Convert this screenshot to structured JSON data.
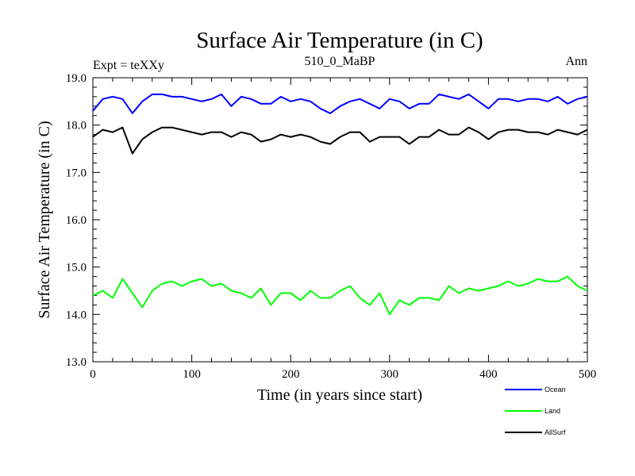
{
  "chart_data": {
    "type": "line",
    "title": "Surface Air Temperature (in C)",
    "subtitle_left": "Expt = teXXy",
    "subtitle_center": "510_0_MaBP",
    "subtitle_right": "Ann",
    "xlabel": "Time (in years since start)",
    "ylabel": "Surface Air Temperature (in C)",
    "xlim": [
      0,
      500
    ],
    "ylim": [
      13.0,
      19.0
    ],
    "x_ticks": [
      0,
      100,
      200,
      300,
      400,
      500
    ],
    "x_tick_labels": [
      "0",
      "100",
      "200",
      "300",
      "400",
      "500"
    ],
    "y_ticks": [
      13.0,
      14.0,
      15.0,
      16.0,
      17.0,
      18.0,
      19.0
    ],
    "y_tick_labels": [
      "13.0",
      "14.0",
      "15.0",
      "16.0",
      "17.0",
      "18.0",
      "19.0"
    ],
    "x": [
      0,
      10,
      20,
      30,
      40,
      50,
      60,
      70,
      80,
      90,
      100,
      110,
      120,
      130,
      140,
      150,
      160,
      170,
      180,
      190,
      200,
      210,
      220,
      230,
      240,
      250,
      260,
      270,
      280,
      290,
      300,
      310,
      320,
      330,
      340,
      350,
      360,
      370,
      380,
      390,
      400,
      410,
      420,
      430,
      440,
      450,
      460,
      470,
      480,
      490,
      500
    ],
    "series": [
      {
        "name": "Ocean",
        "color": "#0000ff",
        "values": [
          18.3,
          18.55,
          18.6,
          18.55,
          18.25,
          18.5,
          18.65,
          18.65,
          18.6,
          18.6,
          18.55,
          18.5,
          18.55,
          18.65,
          18.4,
          18.6,
          18.55,
          18.45,
          18.45,
          18.6,
          18.5,
          18.55,
          18.5,
          18.35,
          18.25,
          18.4,
          18.5,
          18.55,
          18.45,
          18.35,
          18.55,
          18.5,
          18.35,
          18.45,
          18.45,
          18.65,
          18.6,
          18.55,
          18.65,
          18.5,
          18.35,
          18.55,
          18.55,
          18.5,
          18.55,
          18.55,
          18.5,
          18.6,
          18.45,
          18.55,
          18.6
        ]
      },
      {
        "name": "Land",
        "color": "#00ff00",
        "values": [
          14.4,
          14.5,
          14.35,
          14.75,
          14.45,
          14.15,
          14.5,
          14.65,
          14.7,
          14.6,
          14.7,
          14.75,
          14.6,
          14.65,
          14.5,
          14.45,
          14.35,
          14.55,
          14.2,
          14.45,
          14.45,
          14.3,
          14.5,
          14.35,
          14.35,
          14.5,
          14.6,
          14.35,
          14.2,
          14.45,
          14.0,
          14.3,
          14.2,
          14.35,
          14.35,
          14.3,
          14.6,
          14.45,
          14.55,
          14.5,
          14.55,
          14.6,
          14.7,
          14.6,
          14.65,
          14.75,
          14.7,
          14.7,
          14.8,
          14.6,
          14.5
        ]
      },
      {
        "name": "AllSurf",
        "color": "#000000",
        "values": [
          17.75,
          17.9,
          17.85,
          17.95,
          17.4,
          17.7,
          17.85,
          17.95,
          17.95,
          17.9,
          17.85,
          17.8,
          17.85,
          17.85,
          17.75,
          17.85,
          17.8,
          17.65,
          17.7,
          17.8,
          17.75,
          17.8,
          17.75,
          17.65,
          17.6,
          17.75,
          17.85,
          17.85,
          17.65,
          17.75,
          17.75,
          17.75,
          17.6,
          17.75,
          17.75,
          17.9,
          17.8,
          17.8,
          17.95,
          17.85,
          17.7,
          17.85,
          17.9,
          17.9,
          17.85,
          17.85,
          17.8,
          17.9,
          17.85,
          17.8,
          17.9
        ]
      }
    ],
    "legend_position": "bottom-right"
  }
}
